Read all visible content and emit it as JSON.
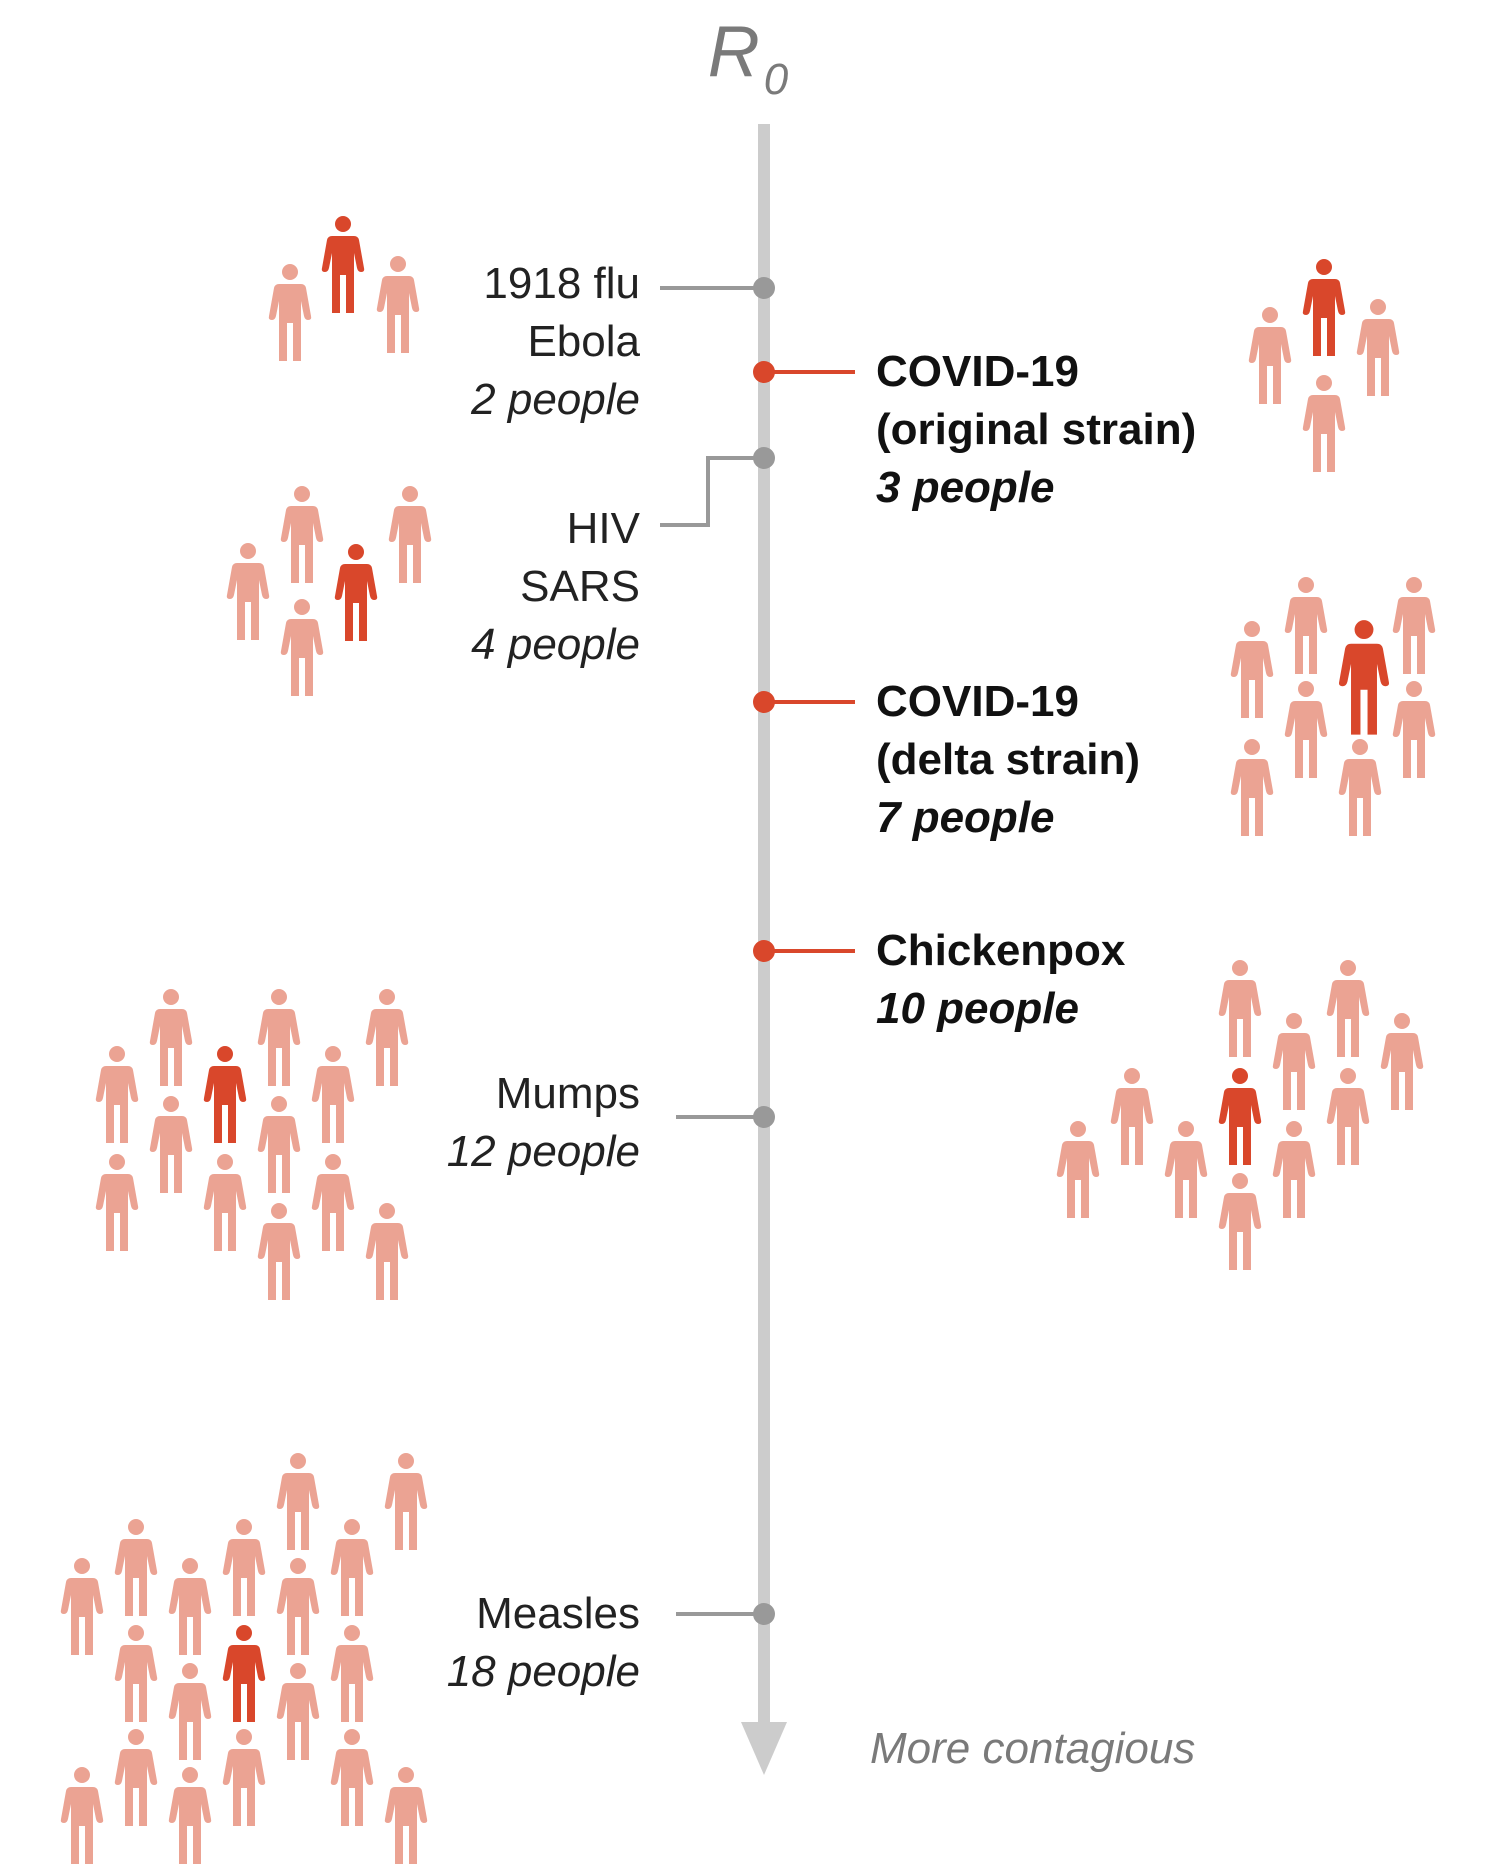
{
  "chart_data": {
    "type": "pictogram",
    "axis": {
      "title_main": "R",
      "title_sub": "0",
      "direction_label": "More contagious"
    },
    "colors": {
      "axis": "#cccccc",
      "connector_default": "#999999",
      "connector_highlight": "#d9472b",
      "person_infector": "#d9472b",
      "person_infected": "#eba393"
    },
    "items": [
      {
        "id": "flu-ebola",
        "side": "left",
        "highlight": false,
        "lines": [
          "1918 flu",
          "Ebola"
        ],
        "value_label": "2 people",
        "value": 2
      },
      {
        "id": "covid-original",
        "side": "right",
        "highlight": true,
        "lines": [
          "COVID-19",
          "(original strain)"
        ],
        "value_label": "3 people",
        "value": 3
      },
      {
        "id": "hiv-sars",
        "side": "left",
        "highlight": false,
        "lines": [
          "HIV",
          "SARS"
        ],
        "value_label": "4 people",
        "value": 4
      },
      {
        "id": "covid-delta",
        "side": "right",
        "highlight": true,
        "lines": [
          "COVID-19",
          "(delta strain)"
        ],
        "value_label": "7 people",
        "value": 7
      },
      {
        "id": "chickenpox",
        "side": "right",
        "highlight": true,
        "lines": [
          "Chickenpox"
        ],
        "value_label": "10 people",
        "value": 10
      },
      {
        "id": "mumps",
        "side": "left",
        "highlight": false,
        "lines": [
          "Mumps"
        ],
        "value_label": "12 people",
        "value": 12
      },
      {
        "id": "measles",
        "side": "left",
        "highlight": false,
        "lines": [
          "Measles"
        ],
        "value_label": "18 people",
        "value": 18
      }
    ]
  }
}
